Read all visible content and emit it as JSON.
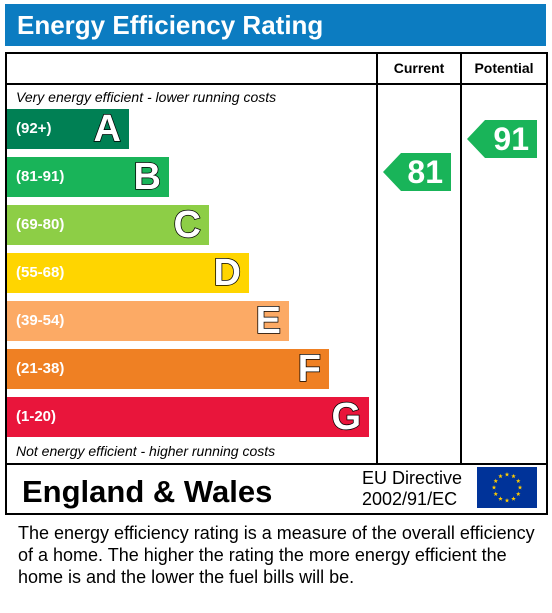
{
  "title": "Energy Efficiency Rating",
  "columns": {
    "current": "Current",
    "potential": "Potential"
  },
  "top_note": "Very energy efficient - lower running costs",
  "bottom_note": "Not energy efficient - higher running costs",
  "colors": {
    "header": "#0c7cc1",
    "A": "#008054",
    "B": "#19b459",
    "C": "#8dce46",
    "D": "#ffd500",
    "E": "#fcaa65",
    "F": "#ef8023",
    "G": "#e9153b"
  },
  "chart_data": {
    "type": "bar",
    "categories": [
      "A",
      "B",
      "C",
      "D",
      "E",
      "F",
      "G"
    ],
    "bands": [
      {
        "letter": "A",
        "range": "(92+)"
      },
      {
        "letter": "B",
        "range": "(81-91)"
      },
      {
        "letter": "C",
        "range": "(69-80)"
      },
      {
        "letter": "D",
        "range": "(55-68)"
      },
      {
        "letter": "E",
        "range": "(39-54)"
      },
      {
        "letter": "F",
        "range": "(21-38)"
      },
      {
        "letter": "G",
        "range": "(1-20)"
      }
    ],
    "current": {
      "value": 81,
      "band": "B"
    },
    "potential": {
      "value": 91,
      "band": "B"
    }
  },
  "region": "England & Wales",
  "directive": {
    "line1": "EU Directive",
    "line2": "2002/91/EC"
  },
  "flag_icon": "eu-flag-icon",
  "footer": "The energy efficiency rating is a measure of the overall efficiency of a home.  The higher the rating the more energy efficient the home is and the lower the fuel bills will be."
}
